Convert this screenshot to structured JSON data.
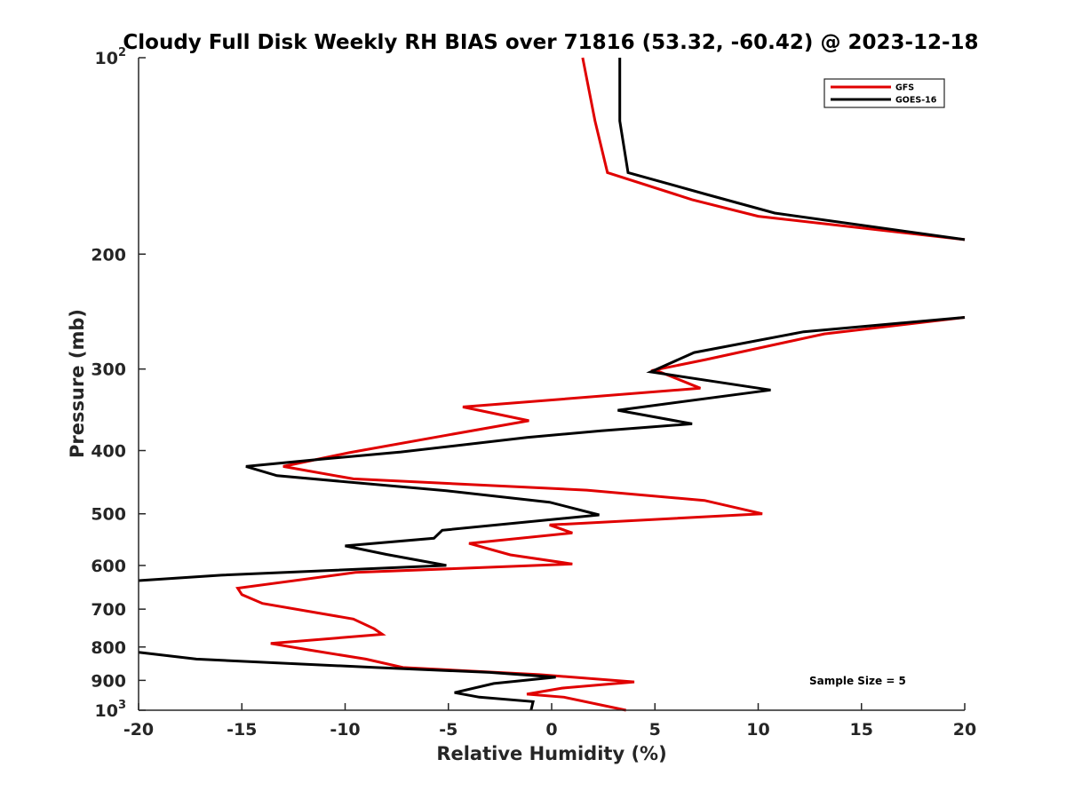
{
  "chart_data": {
    "type": "line",
    "title": "Cloudy Full Disk Weekly RH BIAS over 71816 (53.32, -60.42) @ 2023-12-18",
    "xlabel": "Relative Humidity (%)",
    "ylabel": "Pressure (mb)",
    "xlim": [
      -20,
      20
    ],
    "ylim": [
      100,
      1000
    ],
    "y_scale": "log",
    "y_reversed": true,
    "grid": false,
    "legend_position": "top-right",
    "x_ticks": [
      -20,
      -15,
      -10,
      -5,
      0,
      5,
      10,
      15,
      20
    ],
    "x_tick_labels": [
      "-20",
      "-15",
      "-10",
      "-5",
      "0",
      "5",
      "10",
      "15",
      "20"
    ],
    "y_ticks": [
      {
        "value": 100,
        "base": "10",
        "exp": "2"
      },
      {
        "value": 200,
        "label": "200"
      },
      {
        "value": 300,
        "label": "300"
      },
      {
        "value": 400,
        "label": "400"
      },
      {
        "value": 500,
        "label": "500"
      },
      {
        "value": 600,
        "label": "600"
      },
      {
        "value": 700,
        "label": "700"
      },
      {
        "value": 800,
        "label": "800"
      },
      {
        "value": 900,
        "label": "900"
      },
      {
        "value": 1000,
        "base": "10",
        "exp": "3"
      }
    ],
    "series": [
      {
        "name": "GFS",
        "color": "#e00000",
        "segments": [
          [
            [
              1.5,
              100
            ],
            [
              2.1,
              125
            ],
            [
              2.7,
              150
            ],
            [
              6.8,
              165
            ],
            [
              10.0,
              175
            ],
            [
              20.0,
              190
            ]
          ],
          [
            [
              20.0,
              250
            ],
            [
              13.2,
              265
            ],
            [
              7.5,
              290
            ],
            [
              5.0,
              301
            ],
            [
              7.2,
              321
            ],
            [
              -4.3,
              343
            ],
            [
              -1.1,
              360
            ],
            [
              -5.1,
              379
            ],
            [
              -9.8,
              403
            ],
            [
              -13.0,
              423
            ],
            [
              -9.6,
              442
            ],
            [
              1.7,
              460
            ],
            [
              7.4,
              477
            ],
            [
              10.2,
              500
            ],
            [
              -0.1,
              520
            ],
            [
              1.0,
              535
            ],
            [
              -4.0,
              555
            ],
            [
              -2.0,
              578
            ],
            [
              1.0,
              597
            ],
            [
              -9.5,
              615
            ],
            [
              -15.2,
              650
            ],
            [
              -15.0,
              665
            ],
            [
              -14.0,
              686
            ],
            [
              -9.6,
              725
            ],
            [
              -8.6,
              750
            ],
            [
              -8.2,
              765
            ],
            [
              -13.6,
              790
            ],
            [
              -11.8,
              808
            ],
            [
              -9.0,
              835
            ],
            [
              -7.2,
              860
            ],
            [
              -0.6,
              882
            ],
            [
              4.0,
              905
            ],
            [
              0.5,
              925
            ],
            [
              -1.2,
              945
            ],
            [
              0.6,
              955
            ],
            [
              3.6,
              1000
            ]
          ]
        ]
      },
      {
        "name": "GOES-16",
        "color": "#000000",
        "segments": [
          [
            [
              3.3,
              100
            ],
            [
              3.3,
              125
            ],
            [
              3.7,
              150
            ],
            [
              7.5,
              162
            ],
            [
              10.8,
              173
            ],
            [
              20.0,
              190
            ]
          ],
          [
            [
              20.0,
              250
            ],
            [
              12.2,
              263
            ],
            [
              6.9,
              283
            ],
            [
              4.8,
              303
            ],
            [
              10.6,
              323
            ],
            [
              3.2,
              347
            ],
            [
              6.8,
              364
            ],
            [
              2.4,
              373
            ],
            [
              -1.2,
              382
            ],
            [
              -7.3,
              402
            ],
            [
              -11.0,
              412
            ],
            [
              -14.8,
              423
            ],
            [
              -13.3,
              437
            ],
            [
              -5.1,
              461
            ],
            [
              -0.1,
              480
            ],
            [
              2.3,
              502
            ],
            [
              -5.3,
              530
            ],
            [
              -5.7,
              545
            ],
            [
              -10.0,
              560
            ],
            [
              -8.0,
              577
            ],
            [
              -5.1,
              600
            ],
            [
              -16.0,
              621
            ],
            [
              -20.0,
              633
            ]
          ],
          [
            [
              -20.0,
              815
            ],
            [
              -17.2,
              835
            ],
            [
              -8.5,
              860
            ],
            [
              -3.0,
              875
            ],
            [
              0.2,
              890
            ],
            [
              -2.8,
              910
            ],
            [
              -4.7,
              940
            ],
            [
              -3.5,
              955
            ],
            [
              -0.9,
              970
            ],
            [
              -1.0,
              1000
            ]
          ]
        ]
      }
    ],
    "annotation": "Sample Size = 5"
  }
}
